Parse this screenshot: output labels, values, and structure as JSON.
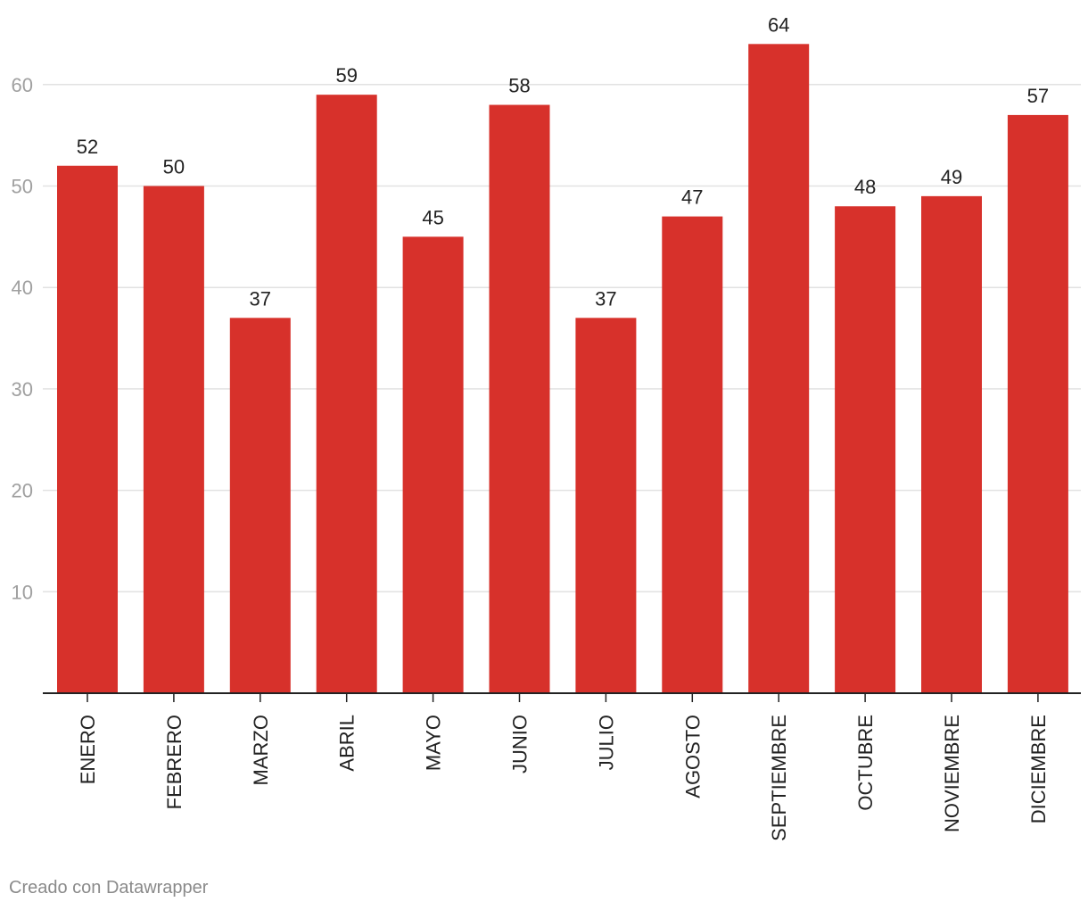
{
  "chart_data": {
    "type": "bar",
    "categories": [
      "ENERO",
      "FEBRERO",
      "MARZO",
      "ABRIL",
      "MAYO",
      "JUNIO",
      "JULIO",
      "AGOSTO",
      "SEPTIEMBRE",
      "OCTUBRE",
      "NOVIEMBRE",
      "DICIEMBRE"
    ],
    "values": [
      52,
      50,
      37,
      59,
      45,
      58,
      37,
      47,
      64,
      48,
      49,
      57
    ],
    "yticks": [
      10,
      20,
      30,
      40,
      50,
      60
    ],
    "ylim": [
      0,
      64
    ],
    "grid": true,
    "data_labels": true,
    "bar_color": "#d7312b",
    "title": "",
    "xlabel": "",
    "ylabel": ""
  },
  "footer": {
    "credit": "Creado con Datawrapper"
  }
}
